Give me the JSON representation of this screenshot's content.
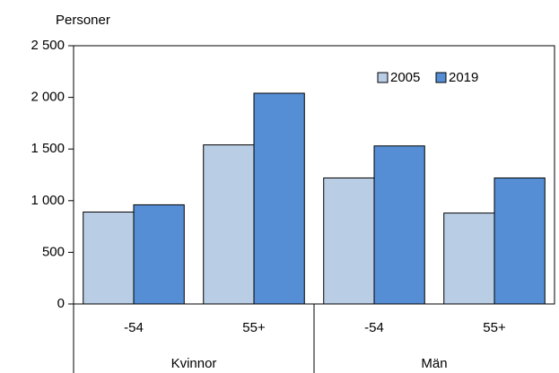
{
  "chart_data": {
    "type": "bar",
    "y_label": "Personer",
    "categories": [
      "-54",
      "55+",
      "-54",
      "55+"
    ],
    "group_labels": [
      "Kvinnor",
      "Män"
    ],
    "series": [
      {
        "name": "2005",
        "color": "#b9cde5",
        "values": [
          890,
          1540,
          1220,
          880
        ]
      },
      {
        "name": "2019",
        "color": "#558ed5",
        "values": [
          960,
          2040,
          1530,
          1220
        ]
      }
    ],
    "ylim": [
      0,
      2500
    ],
    "yticks": [
      0,
      500,
      {
        "value": 1000,
        "label": "1 000"
      },
      {
        "value": 1500,
        "label": "1 500"
      },
      {
        "value": 2000,
        "label": "2 000"
      },
      {
        "value": 2500,
        "label": "2 500"
      }
    ],
    "grid": false,
    "legend": "upper right"
  }
}
